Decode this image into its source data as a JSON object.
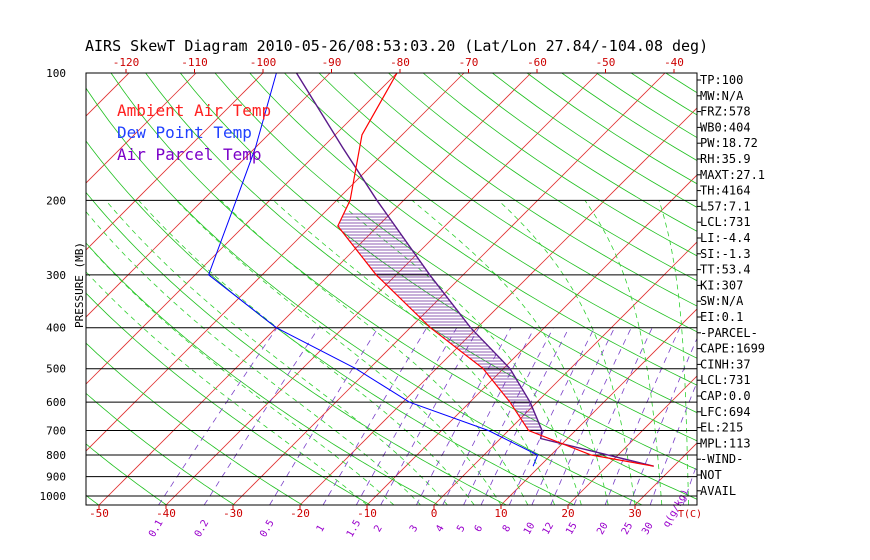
{
  "chart_data": {
    "type": "skewt",
    "title": "AIRS SkewT Diagram 2010-05-26/08:53:03.20 (Lat/Lon 27.84/-104.08 deg)",
    "ylabel": "PRESSURE (MB)",
    "xlabel": "T(C)",
    "mixing_ratio_unit": "q(g/kg)",
    "pressure_ticks": [
      100,
      200,
      300,
      400,
      500,
      600,
      700,
      800,
      900,
      1000
    ],
    "bottom_temp_ticks": [
      -50,
      -40,
      -30,
      -20,
      -10,
      0,
      10,
      20,
      30
    ],
    "top_temp_ticks": [
      -120,
      -110,
      -100,
      -90,
      -80,
      -70,
      -60,
      -50,
      -40
    ],
    "mixing_ratio_labels": [
      "0.1",
      "0.2",
      "0.5",
      "1",
      "1.5",
      "2",
      "3",
      "4",
      "5",
      "6",
      "8",
      "10",
      "12",
      "15",
      "20",
      "25",
      "30",
      "40"
    ],
    "legend": [
      {
        "name": "Ambient Air Temp",
        "color": "#ff0000"
      },
      {
        "name": "Dew Point Temp",
        "color": "#0000ff"
      },
      {
        "name": "Air Parcel Temp",
        "color": "#7b00c8"
      }
    ],
    "side_labels": [
      "TP:100",
      "MW:N/A",
      "FRZ:578",
      "WB0:404",
      "PW:18.72",
      "RH:35.9",
      "MAXT:27.1",
      "TH:4164",
      "L57:7.1",
      "LCL:731",
      "LI:-4.4",
      "SI:-1.3",
      "TT:53.4",
      "KI:307",
      "SW:N/A",
      "EI:0.1",
      "-PARCEL-",
      "CAPE:1699",
      "CINH:37",
      "LCL:731",
      "CAP:0.0",
      "LFC:694",
      "EL:215",
      "MPL:113",
      "-WIND-",
      "NOT",
      "AVAIL"
    ],
    "ambient_temp": [
      {
        "p": 100,
        "t": -70
      },
      {
        "p": 140,
        "t": -66
      },
      {
        "p": 200,
        "t": -58
      },
      {
        "p": 230,
        "t": -56
      },
      {
        "p": 300,
        "t": -43
      },
      {
        "p": 400,
        "t": -27
      },
      {
        "p": 500,
        "t": -13
      },
      {
        "p": 600,
        "t": -4
      },
      {
        "p": 700,
        "t": 3
      },
      {
        "p": 800,
        "t": 16
      },
      {
        "p": 850,
        "t": 27
      }
    ],
    "dew_point": [
      {
        "p": 100,
        "t": -88
      },
      {
        "p": 150,
        "t": -80
      },
      {
        "p": 200,
        "t": -75
      },
      {
        "p": 300,
        "t": -68
      },
      {
        "p": 400,
        "t": -50
      },
      {
        "p": 500,
        "t": -32
      },
      {
        "p": 600,
        "t": -19
      },
      {
        "p": 700,
        "t": -3
      },
      {
        "p": 800,
        "t": 8
      },
      {
        "p": 850,
        "t": 9
      }
    ],
    "parcel_temp": [
      {
        "p": 100,
        "t": -85
      },
      {
        "p": 150,
        "t": -67
      },
      {
        "p": 200,
        "t": -54
      },
      {
        "p": 300,
        "t": -35
      },
      {
        "p": 400,
        "t": -21
      },
      {
        "p": 500,
        "t": -9
      },
      {
        "p": 600,
        "t": -1
      },
      {
        "p": 700,
        "t": 5
      },
      {
        "p": 731,
        "t": 6
      },
      {
        "p": 850,
        "t": 27
      }
    ],
    "cape_shading": {
      "top_p": 215,
      "bottom_p": 731
    }
  }
}
